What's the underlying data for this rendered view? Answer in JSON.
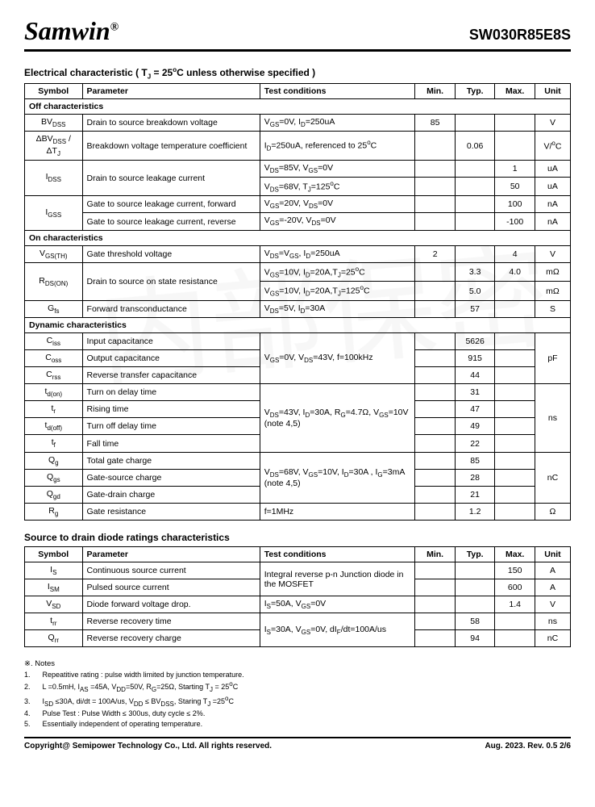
{
  "header": {
    "logo": "Samwin",
    "reg": "®",
    "partno": "SW030R85E8S"
  },
  "t1": {
    "title": "Electrical characteristic ( T_J = 25°C unless otherwise specified )",
    "cols": [
      "Symbol",
      "Parameter",
      "Test conditions",
      "Min.",
      "Typ.",
      "Max.",
      "Unit"
    ],
    "sec1": "Off characteristics",
    "r1": {
      "s": "BV_DSS",
      "p": "Drain to source breakdown voltage",
      "c": "V_GS=0V, I_D=250uA",
      "min": "85",
      "typ": "",
      "max": "",
      "u": "V"
    },
    "r2": {
      "s": "ΔBV_DSS / ΔT_J",
      "p": "Breakdown voltage temperature coefficient",
      "c": "I_D=250uA, referenced to 25°C",
      "min": "",
      "typ": "0.06",
      "max": "",
      "u": "V/°C"
    },
    "r3a": {
      "s": "I_DSS",
      "p": "Drain to source leakage current",
      "c": "V_DS=85V, V_GS=0V",
      "min": "",
      "typ": "",
      "max": "1",
      "u": "uA"
    },
    "r3b": {
      "c": "V_DS=68V, T_J=125°C",
      "min": "",
      "typ": "",
      "max": "50",
      "u": "uA"
    },
    "r4a": {
      "s": "I_GSS",
      "p": "Gate to source leakage current, forward",
      "c": "V_GS=20V, V_DS=0V",
      "min": "",
      "typ": "",
      "max": "100",
      "u": "nA"
    },
    "r4b": {
      "p": "Gate to source leakage current, reverse",
      "c": "V_GS=-20V, V_DS=0V",
      "min": "",
      "typ": "",
      "max": "-100",
      "u": "nA"
    },
    "sec2": "On characteristics",
    "r5": {
      "s": "V_GS(TH)",
      "p": "Gate threshold voltage",
      "c": "V_DS=V_GS, I_D=250uA",
      "min": "2",
      "typ": "",
      "max": "4",
      "u": "V"
    },
    "r6a": {
      "s": "R_DS(ON)",
      "p": "Drain to source on state resistance",
      "c": "V_GS=10V, I_D=20A,T_J=25°C",
      "min": "",
      "typ": "3.3",
      "max": "4.0",
      "u": "mΩ"
    },
    "r6b": {
      "c": "V_GS=10V, I_D=20A,T_J=125°C",
      "min": "",
      "typ": "5.0",
      "max": "",
      "u": "mΩ"
    },
    "r7": {
      "s": "G_fs",
      "p": "Forward transconductance",
      "c": "V_DS=5V, I_D=30A",
      "min": "",
      "typ": "57",
      "max": "",
      "u": "S"
    },
    "sec3": "Dynamic characteristics",
    "r8": {
      "s": "C_iss",
      "p": "Input capacitance",
      "typ": "5626"
    },
    "r9": {
      "s": "C_oss",
      "p": "Output capacitance",
      "c": "V_GS=0V, V_DS=43V, f=100kHz",
      "typ": "915",
      "u": "pF"
    },
    "r10": {
      "s": "C_rss",
      "p": "Reverse transfer capacitance",
      "typ": "44"
    },
    "r11": {
      "s": "t_d(on)",
      "p": "Turn on delay time",
      "typ": "31"
    },
    "r12": {
      "s": "t_r",
      "p": "Rising time",
      "typ": "47"
    },
    "r13": {
      "s": "t_d(off)",
      "p": "Turn off delay time",
      "c": "V_DS=43V, I_D=30A, R_G=4.7Ω, V_GS=10V (note 4,5)",
      "typ": "49",
      "u": "ns"
    },
    "r14": {
      "s": "t_f",
      "p": "Fall time",
      "typ": "22"
    },
    "r15": {
      "s": "Q_g",
      "p": "Total gate charge",
      "typ": "85"
    },
    "r16": {
      "s": "Q_gs",
      "p": "Gate-source charge",
      "c": "V_DS=68V, V_GS=10V, I_D=30A , I_G=3mA (note 4,5)",
      "typ": "28",
      "u": "nC"
    },
    "r17": {
      "s": "Q_gd",
      "p": "Gate-drain charge",
      "typ": "21"
    },
    "r18": {
      "s": "R_g",
      "p": "Gate resistance",
      "c": "f=1MHz",
      "min": "",
      "typ": "1.2",
      "max": "",
      "u": "Ω"
    }
  },
  "t2": {
    "title": "Source to drain diode ratings characteristics",
    "cols": [
      "Symbol",
      "Parameter",
      "Test conditions",
      "Min.",
      "Typ.",
      "Max.",
      "Unit"
    ],
    "r1": {
      "s": "I_S",
      "p": "Continuous source current",
      "max": "150",
      "u": "A"
    },
    "r2": {
      "s": "I_SM",
      "p": "Pulsed source current",
      "c": "Integral reverse p-n Junction diode in the MOSFET",
      "max": "600",
      "u": "A"
    },
    "r3": {
      "s": "V_SD",
      "p": "Diode forward voltage drop.",
      "c": "I_S=50A, V_GS=0V",
      "min": "",
      "typ": "",
      "max": "1.4",
      "u": "V"
    },
    "r4": {
      "s": "t_rr",
      "p": "Reverse recovery time",
      "typ": "58",
      "u": "ns"
    },
    "r5": {
      "s": "Q_rr",
      "p": "Reverse recovery charge",
      "c": "I_S=30A, V_GS=0V, dI_F/dt=100A/us",
      "typ": "94",
      "u": "nC"
    }
  },
  "notes": {
    "hdr": "※. Notes",
    "n1": "1.      Repeatitive rating : pulse width limited by junction temperature.",
    "n2": "2.      L =0.5mH, I_AS =45A, V_DD=50V, R_G=25Ω, Starting T_J = 25°C",
    "n3": "3.      I_SD ≤30A, di/dt = 100A/us, V_DD ≤ BV_DSS, Staring T_J =25°C",
    "n4": "4.      Pulse Test : Pulse Width ≤ 300us, duty cycle ≤ 2%.",
    "n5": "5.      Essentially independent of operating temperature."
  },
  "footer": {
    "l": "Copyright@ Semipower Technology Co., Ltd. All rights reserved.",
    "r": "Aug. 2023. Rev. 0.5    2/6"
  }
}
